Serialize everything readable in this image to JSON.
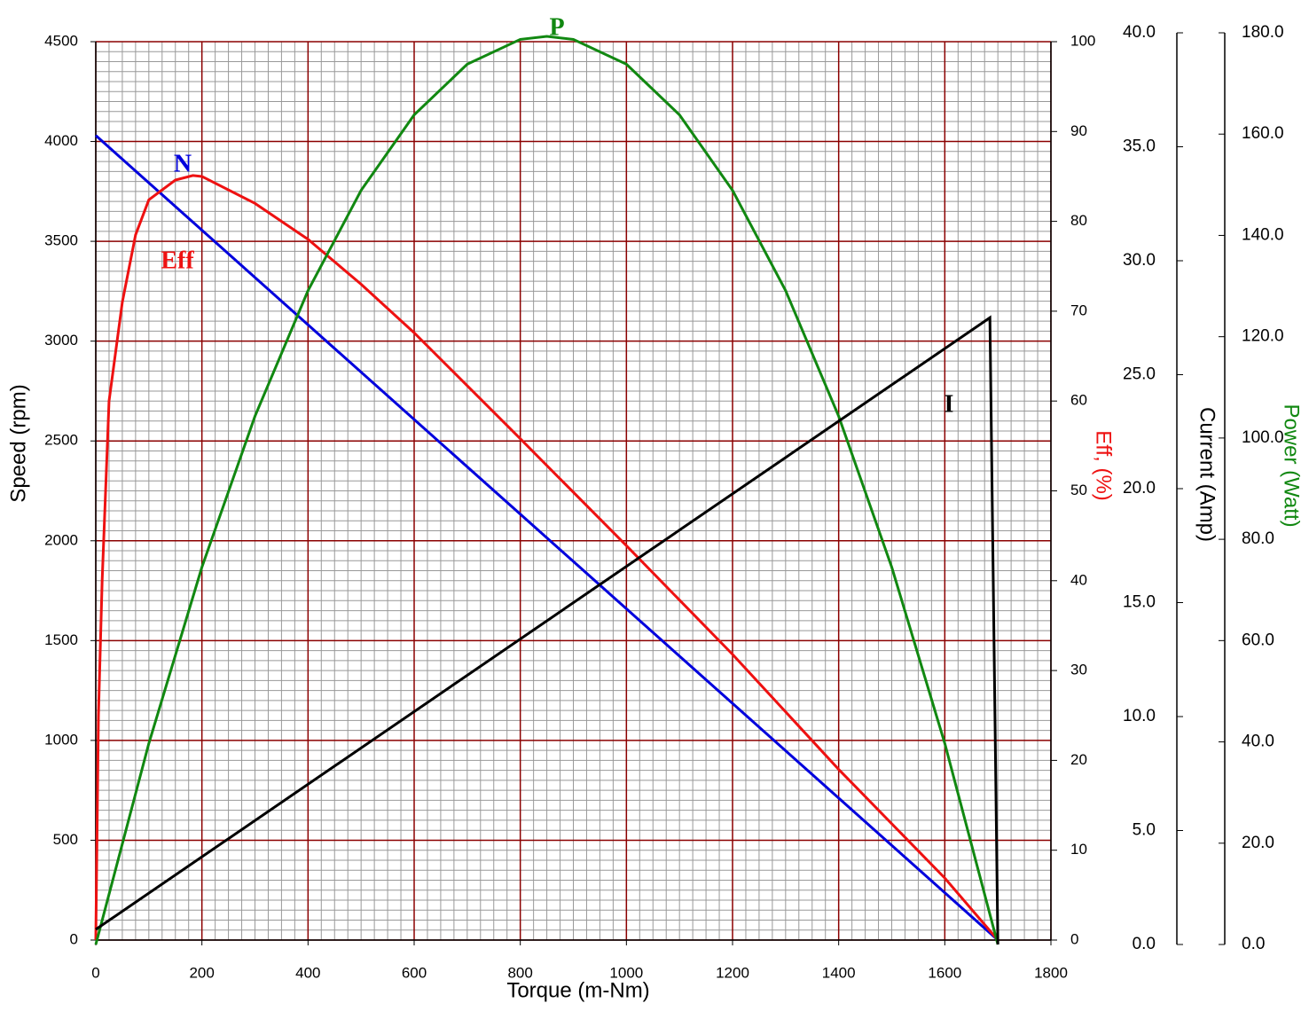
{
  "chart_data": {
    "type": "line",
    "x_label": "Torque (m-Nm)",
    "y_label": "Speed (rpm)",
    "y2_label": "Eff, (%)",
    "y3_label": "Current (Amp)",
    "y4_label": "Power (Watt)",
    "xlim": [
      0,
      1800
    ],
    "xticks": [
      0,
      200,
      400,
      600,
      800,
      1000,
      1200,
      1400,
      1600,
      1800
    ],
    "ylim": [
      0,
      4500
    ],
    "yticks": [
      0,
      500,
      1000,
      1500,
      2000,
      2500,
      3000,
      3500,
      4000,
      4500
    ],
    "y2lim": [
      0,
      100
    ],
    "y2ticks": [
      0,
      10,
      20,
      30,
      40,
      50,
      60,
      70,
      80,
      90,
      100
    ],
    "y3lim": [
      0,
      40
    ],
    "y3ticks": [
      {
        "value": 0,
        "label": "0.0"
      },
      {
        "value": 5,
        "label": "5.0"
      },
      {
        "value": 10,
        "label": "10.0"
      },
      {
        "value": 15,
        "label": "15.0"
      },
      {
        "value": 20,
        "label": "20.0"
      },
      {
        "value": 25,
        "label": "25.0"
      },
      {
        "value": 30,
        "label": "30.0"
      },
      {
        "value": 35,
        "label": "35.0"
      },
      {
        "value": 40,
        "label": "40.0"
      }
    ],
    "y4lim": [
      0,
      180
    ],
    "y4ticks": [
      {
        "value": 0,
        "label": "0.0"
      },
      {
        "value": 20,
        "label": "20.0"
      },
      {
        "value": 40,
        "label": "40.0"
      },
      {
        "value": 60,
        "label": "60.0"
      },
      {
        "value": 80,
        "label": "80.0"
      },
      {
        "value": 100,
        "label": "100.0"
      },
      {
        "value": 120,
        "label": "120.0"
      },
      {
        "value": 140,
        "label": "140.0"
      },
      {
        "value": 160,
        "label": "160.0"
      },
      {
        "value": 180,
        "label": "180.0"
      }
    ],
    "grid": true,
    "minor_grid": true,
    "series": [
      {
        "name": "N",
        "color": "#0000dd",
        "axis": "y",
        "x": [
          0,
          1700
        ],
        "values": [
          4030,
          0
        ]
      },
      {
        "name": "Eff",
        "color": "#ee1111",
        "axis": "y2",
        "x": [
          0,
          5,
          12,
          25,
          50,
          75,
          100,
          150,
          183,
          200,
          300,
          400,
          500,
          600,
          800,
          1000,
          1200,
          1400,
          1600,
          1700
        ],
        "values": [
          0,
          25,
          40,
          60,
          71,
          78.5,
          82.4,
          84.6,
          85.1,
          85,
          82,
          78,
          73,
          67.6,
          55.8,
          43.9,
          31.8,
          19,
          6.9,
          0
        ]
      },
      {
        "name": "P",
        "color": "#118811",
        "axis": "y4",
        "x": [
          0,
          100,
          200,
          300,
          400,
          500,
          600,
          700,
          800,
          850,
          900,
          1000,
          1100,
          1200,
          1300,
          1400,
          1500,
          1600,
          1700
        ],
        "values": [
          0,
          39.7,
          74.5,
          104.3,
          129.1,
          148.9,
          163.8,
          173.8,
          178.7,
          179.3,
          178.7,
          173.8,
          163.8,
          148.9,
          129.1,
          104.3,
          74.5,
          39.7,
          0
        ]
      },
      {
        "name": "I",
        "color": "#000000",
        "axis": "y3",
        "x": [
          0,
          1685,
          1700
        ],
        "values": [
          0.66,
          27.5,
          0
        ]
      }
    ]
  }
}
